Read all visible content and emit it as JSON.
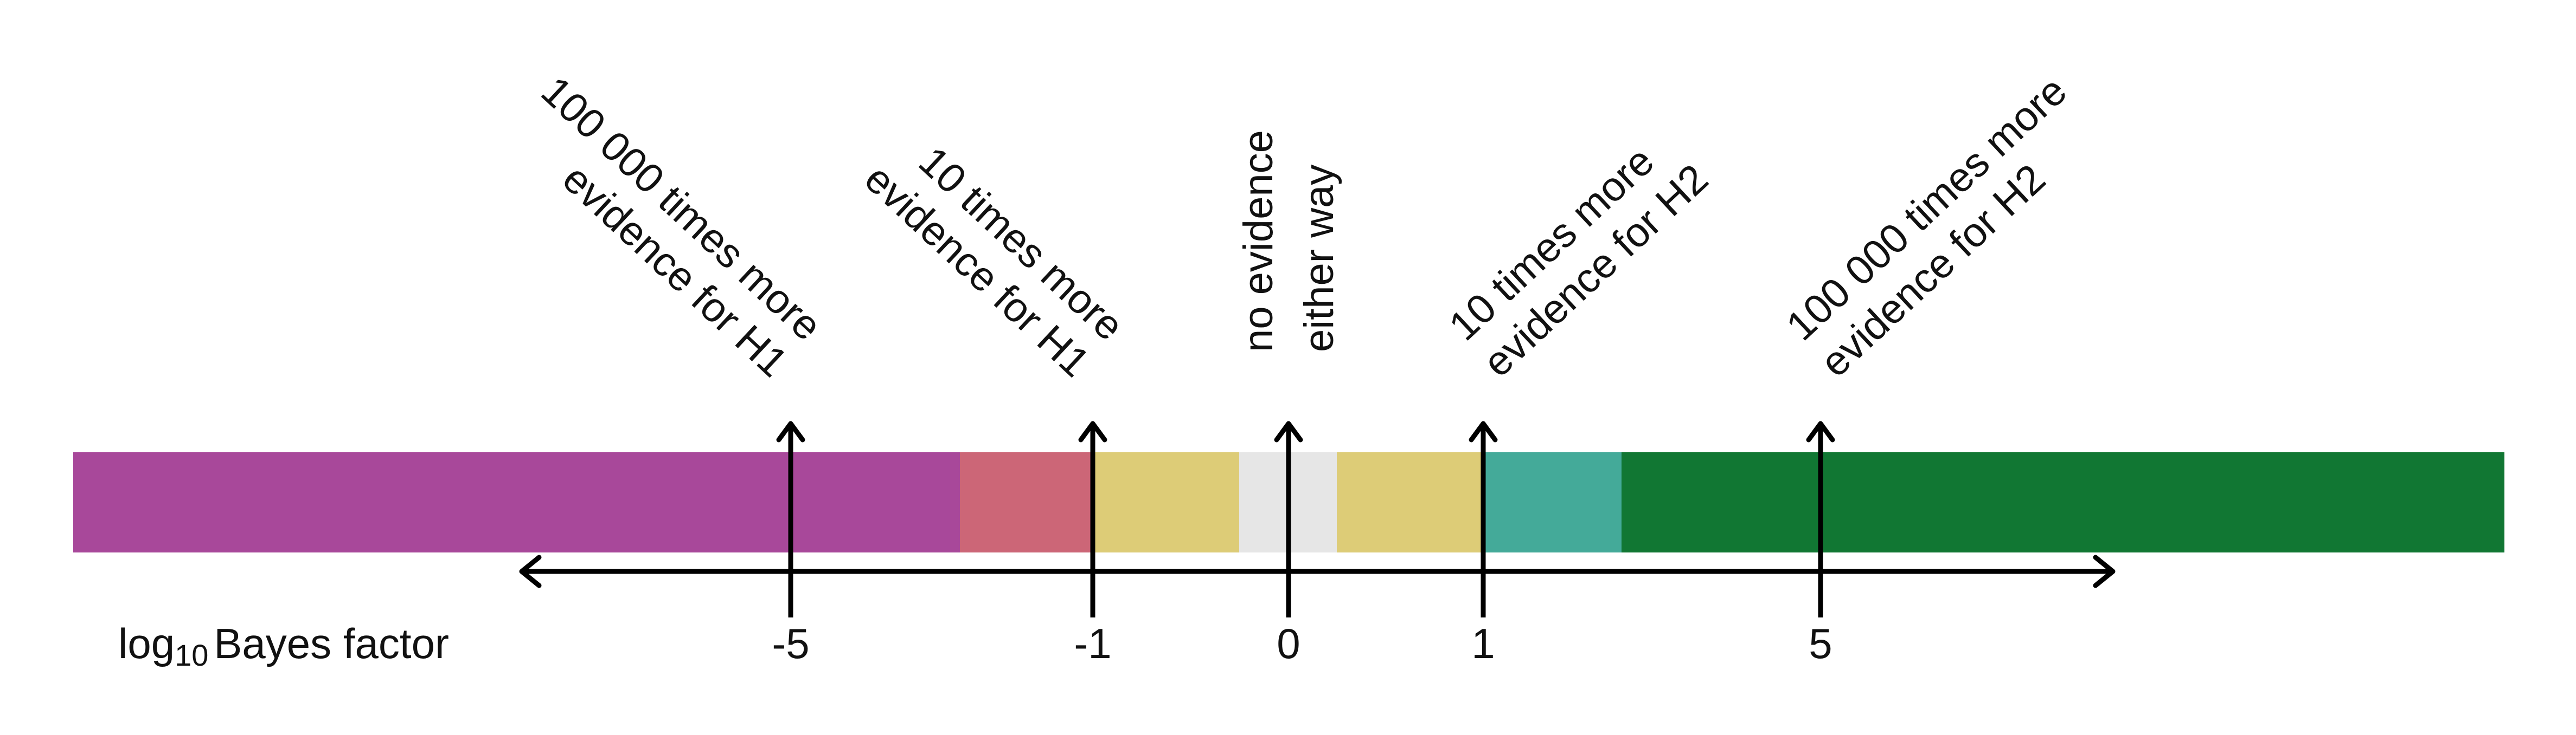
{
  "bands": [
    {
      "name": "band-strong-h1",
      "color": "#a8489a"
    },
    {
      "name": "band-moderate-h1",
      "color": "#cc6677"
    },
    {
      "name": "band-weak-h1",
      "color": "#ddcc77"
    },
    {
      "name": "band-neutral",
      "color": "#e6e6e6"
    },
    {
      "name": "band-weak-h2",
      "color": "#ddcc77"
    },
    {
      "name": "band-moderate-h2",
      "color": "#44aa99"
    },
    {
      "name": "band-strong-h2",
      "color": "#117733"
    }
  ],
  "axis": {
    "label_prefix": "log",
    "label_subscript": "10",
    "label_suffix": "Bayes factor",
    "scale": "log10"
  },
  "markers": [
    {
      "value": -5,
      "tick_label": "-5",
      "annotation": [
        "100 000 times more",
        "evidence for H1"
      ],
      "tilt": "right"
    },
    {
      "value": -1,
      "tick_label": "-1",
      "annotation": [
        "10 times more",
        "evidence for H1"
      ],
      "tilt": "right"
    },
    {
      "value": 0,
      "tick_label": "0",
      "annotation": [
        "no evidence",
        "either way"
      ],
      "tilt": "vertical"
    },
    {
      "value": 1,
      "tick_label": "1",
      "annotation": [
        "10 times more",
        "evidence for H2"
      ],
      "tilt": "left"
    },
    {
      "value": 5,
      "tick_label": "5",
      "annotation": [
        "100 000 times more",
        "evidence for H2"
      ],
      "tilt": "left"
    }
  ]
}
